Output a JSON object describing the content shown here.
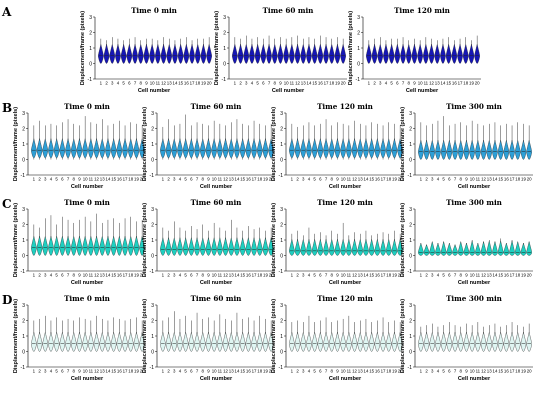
{
  "figure": {
    "rows": [
      {
        "label": "A",
        "titles": [
          "Time 0 min",
          "Time 60 min",
          "Time 120 min"
        ]
      },
      {
        "label": "B",
        "titles": [
          "Time 0 min",
          "Time 60 min",
          "Time 120 min",
          "Time 300 min"
        ]
      },
      {
        "label": "C",
        "titles": [
          "Time 0 min",
          "Time 60 min",
          "Time 120 min",
          "Time 300 min"
        ]
      },
      {
        "label": "D",
        "titles": [
          "Time 0 min",
          "Time 60 min",
          "Time 120 min",
          "Time 300 min"
        ]
      }
    ]
  },
  "chart_data": {
    "type": "violin",
    "xlabel": "Cell number",
    "ylabel": "Displacement/frame (pixels)",
    "categories": [
      "1",
      "2",
      "3",
      "4",
      "5",
      "6",
      "7",
      "8",
      "9",
      "10",
      "11",
      "12",
      "13",
      "14",
      "15",
      "16",
      "17",
      "18",
      "19",
      "20"
    ],
    "ylim": [
      -1,
      3
    ],
    "yticks": [
      "-1",
      "0",
      "1",
      "2",
      "3"
    ],
    "colors": {
      "A": "#1616b4",
      "B": "#2e9fd6",
      "C": "#1fcfc0",
      "D": "#dff5f2",
      "outline": "#222222"
    },
    "panels": [
      {
        "row": "A",
        "title": "Time 0 min",
        "median": [
          0.5,
          0.5,
          0.5,
          0.5,
          0.5,
          0.5,
          0.5,
          0.5,
          0.5,
          0.5,
          0.5,
          0.5,
          0.5,
          0.5,
          0.5,
          0.5,
          0.5,
          0.5,
          0.5,
          0.5
        ],
        "min": [
          0,
          0,
          0,
          0,
          0,
          0,
          0,
          0,
          0,
          0,
          0,
          0,
          0,
          0,
          0,
          0,
          0,
          0,
          0,
          0
        ],
        "max": [
          1.6,
          1.5,
          1.7,
          1.6,
          1.5,
          1.6,
          1.7,
          1.5,
          1.6,
          1.6,
          1.5,
          1.7,
          1.6,
          1.5,
          1.6,
          1.7,
          1.5,
          1.6,
          1.6,
          1.7
        ]
      },
      {
        "row": "A",
        "title": "Time 60 min",
        "median": [
          0.5,
          0.5,
          0.5,
          0.5,
          0.5,
          0.5,
          0.5,
          0.5,
          0.5,
          0.5,
          0.5,
          0.5,
          0.5,
          0.5,
          0.5,
          0.5,
          0.5,
          0.5,
          0.5,
          0.5
        ],
        "min": [
          0,
          0,
          0,
          0,
          0,
          0,
          0,
          0,
          0,
          0,
          0,
          0,
          0,
          0,
          0,
          0,
          0,
          0,
          0,
          0
        ],
        "max": [
          1.7,
          1.6,
          1.8,
          1.6,
          1.7,
          1.6,
          1.8,
          1.6,
          1.7,
          1.6,
          1.7,
          1.8,
          1.6,
          1.7,
          1.6,
          1.8,
          1.7,
          1.6,
          1.7,
          1.6
        ]
      },
      {
        "row": "A",
        "title": "Time 120 min",
        "median": [
          0.5,
          0.5,
          0.5,
          0.5,
          0.5,
          0.5,
          0.5,
          0.5,
          0.5,
          0.5,
          0.5,
          0.5,
          0.5,
          0.5,
          0.5,
          0.5,
          0.5,
          0.5,
          0.5,
          0.5
        ],
        "min": [
          0,
          0,
          0,
          0,
          0,
          0,
          0,
          0,
          0,
          0,
          0,
          0,
          0,
          0,
          0,
          0,
          0,
          0,
          0,
          0
        ],
        "max": [
          1.5,
          1.6,
          1.7,
          1.5,
          1.6,
          1.6,
          1.7,
          1.5,
          1.6,
          1.5,
          1.7,
          1.6,
          1.5,
          1.6,
          1.7,
          1.5,
          1.6,
          1.7,
          1.5,
          1.8
        ]
      },
      {
        "row": "B",
        "title": "Time 0 min",
        "median": [
          0.6,
          0.6,
          0.6,
          0.6,
          0.6,
          0.6,
          0.6,
          0.6,
          0.6,
          0.6,
          0.6,
          0.6,
          0.6,
          0.6,
          0.6,
          0.6,
          0.6,
          0.6,
          0.6,
          0.6
        ],
        "min": [
          0,
          0,
          0,
          0,
          0,
          0,
          0,
          0,
          0,
          0,
          0,
          0,
          0,
          0,
          0,
          0,
          0,
          0,
          0,
          0
        ],
        "max": [
          2.2,
          2.5,
          2.2,
          2.3,
          2.2,
          2.4,
          2.6,
          2.3,
          2.2,
          2.8,
          2.4,
          2.3,
          2.6,
          2.2,
          2.3,
          2.5,
          2.2,
          2.4,
          2.3,
          2.2
        ]
      },
      {
        "row": "B",
        "title": "Time 60 min",
        "median": [
          0.6,
          0.6,
          0.6,
          0.6,
          0.6,
          0.6,
          0.6,
          0.6,
          0.6,
          0.6,
          0.6,
          0.6,
          0.6,
          0.6,
          0.6,
          0.6,
          0.6,
          0.6,
          0.6,
          0.6
        ],
        "min": [
          0,
          0,
          0,
          0,
          0,
          0,
          0,
          0,
          0,
          0,
          0,
          0,
          0,
          0,
          0,
          0,
          0,
          0,
          0,
          0
        ],
        "max": [
          2.1,
          2.6,
          2.2,
          2.3,
          2.9,
          2.2,
          2.4,
          2.3,
          2.2,
          2.5,
          2.3,
          2.2,
          2.4,
          2.6,
          2.3,
          2.2,
          2.5,
          2.3,
          2.2,
          2.3
        ]
      },
      {
        "row": "B",
        "title": "Time 120 min",
        "median": [
          0.6,
          0.6,
          0.6,
          0.6,
          0.6,
          0.6,
          0.6,
          0.6,
          0.6,
          0.6,
          0.6,
          0.6,
          0.6,
          0.6,
          0.6,
          0.6,
          0.6,
          0.6,
          0.6,
          0.6
        ],
        "min": [
          0,
          0,
          0,
          0,
          0,
          0,
          0,
          0,
          0,
          0,
          0,
          0,
          0,
          0,
          0,
          0,
          0,
          0,
          0,
          0
        ],
        "max": [
          2.3,
          2.1,
          2.2,
          2.4,
          2.2,
          2.3,
          2.6,
          2.2,
          2.4,
          2.3,
          2.2,
          2.5,
          2.3,
          2.2,
          2.4,
          2.3,
          2.2,
          2.4,
          2.3,
          2.2
        ]
      },
      {
        "row": "B",
        "title": "Time 300 min",
        "median": [
          0.5,
          0.5,
          0.5,
          0.5,
          0.5,
          0.5,
          0.5,
          0.5,
          0.5,
          0.5,
          0.5,
          0.5,
          0.5,
          0.5,
          0.5,
          0.5,
          0.5,
          0.5,
          0.5,
          0.5
        ],
        "min": [
          0,
          0,
          0,
          0,
          0,
          0,
          0,
          0,
          0,
          0,
          0,
          0,
          0,
          0,
          0,
          0,
          0,
          0,
          0,
          0
        ],
        "max": [
          2.4,
          2.2,
          2.3,
          2.5,
          2.8,
          2.2,
          2.3,
          2.4,
          2.2,
          2.5,
          2.3,
          2.2,
          2.3,
          2.4,
          2.2,
          2.3,
          2.2,
          2.4,
          2.3,
          2.2
        ]
      },
      {
        "row": "C",
        "title": "Time 0 min",
        "median": [
          0.5,
          0.5,
          0.5,
          0.5,
          0.5,
          0.5,
          0.5,
          0.5,
          0.5,
          0.5,
          0.5,
          0.5,
          0.5,
          0.5,
          0.5,
          0.5,
          0.5,
          0.5,
          0.5,
          0.5
        ],
        "min": [
          0,
          0,
          0,
          0,
          0,
          0,
          0,
          0,
          0,
          0,
          0,
          0,
          0,
          0,
          0,
          0,
          0,
          0,
          0,
          0
        ],
        "max": [
          2.0,
          1.8,
          2.4,
          2.6,
          2.0,
          2.5,
          2.3,
          2.1,
          2.3,
          2.5,
          2.2,
          2.7,
          2.1,
          2.3,
          2.4,
          2.1,
          2.4,
          2.5,
          2.2,
          2.3
        ]
      },
      {
        "row": "C",
        "title": "Time 60 min",
        "median": [
          0.4,
          0.4,
          0.4,
          0.4,
          0.4,
          0.4,
          0.4,
          0.4,
          0.4,
          0.4,
          0.4,
          0.4,
          0.4,
          0.4,
          0.4,
          0.4,
          0.4,
          0.4,
          0.4,
          0.4
        ],
        "min": [
          0,
          0,
          0,
          0,
          0,
          0,
          0,
          0,
          0,
          0,
          0,
          0,
          0,
          0,
          0,
          0,
          0,
          0,
          0,
          0
        ],
        "max": [
          1.8,
          1.6,
          2.2,
          1.8,
          1.6,
          1.9,
          1.7,
          2.0,
          1.6,
          2.1,
          1.8,
          1.6,
          2.3,
          1.8,
          1.6,
          1.9,
          1.7,
          1.8,
          1.6,
          1.8
        ]
      },
      {
        "row": "C",
        "title": "Time 120 min",
        "median": [
          0.3,
          0.3,
          0.3,
          0.3,
          0.3,
          0.3,
          0.3,
          0.3,
          0.3,
          0.3,
          0.3,
          0.3,
          0.3,
          0.3,
          0.3,
          0.3,
          0.3,
          0.3,
          0.3,
          0.3
        ],
        "min": [
          0,
          0,
          0,
          0,
          0,
          0,
          0,
          0,
          0,
          0,
          0,
          0,
          0,
          0,
          0,
          0,
          0,
          0,
          0,
          0
        ],
        "max": [
          1.4,
          1.6,
          1.3,
          1.8,
          1.4,
          1.5,
          1.3,
          1.6,
          1.4,
          2.1,
          1.3,
          1.5,
          1.4,
          1.6,
          1.3,
          1.4,
          1.5,
          1.4,
          1.6,
          1.4
        ]
      },
      {
        "row": "C",
        "title": "Time 300 min",
        "median": [
          0.2,
          0.2,
          0.2,
          0.2,
          0.2,
          0.2,
          0.2,
          0.2,
          0.2,
          0.2,
          0.2,
          0.2,
          0.2,
          0.2,
          0.2,
          0.2,
          0.2,
          0.2,
          0.2,
          0.2
        ],
        "min": [
          0,
          0,
          0,
          0,
          0,
          0,
          0,
          0,
          0,
          0,
          0,
          0,
          0,
          0,
          0,
          0,
          0,
          0,
          0,
          0
        ],
        "max": [
          0.8,
          0.7,
          0.9,
          0.8,
          0.9,
          0.8,
          0.7,
          0.9,
          0.8,
          1.0,
          0.8,
          0.9,
          1.0,
          0.9,
          1.1,
          0.8,
          1.0,
          0.9,
          0.8,
          0.9
        ]
      },
      {
        "row": "D",
        "title": "Time 0 min",
        "median": [
          0.5,
          0.5,
          0.5,
          0.5,
          0.5,
          0.5,
          0.5,
          0.5,
          0.5,
          0.5,
          0.5,
          0.5,
          0.5,
          0.5,
          0.5,
          0.5,
          0.5,
          0.5,
          0.5,
          0.5
        ],
        "min": [
          0,
          0,
          0,
          0,
          0,
          0,
          0,
          0,
          0,
          0,
          0,
          0,
          0,
          0,
          0,
          0,
          0,
          0,
          0,
          0
        ],
        "max": [
          2.0,
          2.1,
          2.3,
          2.0,
          2.2,
          2.0,
          2.1,
          2.0,
          2.2,
          2.1,
          2.0,
          2.3,
          2.1,
          2.0,
          2.2,
          2.1,
          2.0,
          2.1,
          2.2,
          2.0
        ]
      },
      {
        "row": "D",
        "title": "Time 60 min",
        "median": [
          0.5,
          0.5,
          0.5,
          0.5,
          0.5,
          0.5,
          0.5,
          0.5,
          0.5,
          0.5,
          0.5,
          0.5,
          0.5,
          0.5,
          0.5,
          0.5,
          0.5,
          0.5,
          0.5,
          0.5
        ],
        "min": [
          0,
          0,
          0,
          0,
          0,
          0,
          0,
          0,
          0,
          0,
          0,
          0,
          0,
          0,
          0,
          0,
          0,
          0,
          0,
          0
        ],
        "max": [
          2.0,
          2.2,
          2.6,
          2.1,
          2.3,
          2.0,
          2.5,
          2.1,
          2.2,
          2.0,
          2.4,
          2.1,
          2.0,
          2.5,
          2.1,
          2.2,
          2.0,
          2.3,
          2.1,
          2.0
        ]
      },
      {
        "row": "D",
        "title": "Time 120 min",
        "median": [
          0.5,
          0.5,
          0.5,
          0.5,
          0.5,
          0.5,
          0.5,
          0.5,
          0.5,
          0.5,
          0.5,
          0.5,
          0.5,
          0.5,
          0.5,
          0.5,
          0.5,
          0.5,
          0.5,
          0.5
        ],
        "min": [
          0,
          0,
          0,
          0,
          0,
          0,
          0,
          0,
          0,
          0,
          0,
          0,
          0,
          0,
          0,
          0,
          0,
          0,
          0,
          0
        ],
        "max": [
          1.9,
          2.0,
          1.9,
          2.3,
          1.9,
          2.0,
          2.2,
          1.9,
          2.0,
          2.1,
          2.3,
          1.9,
          2.0,
          2.1,
          1.9,
          2.0,
          2.2,
          1.9,
          2.0,
          1.9
        ]
      },
      {
        "row": "D",
        "title": "Time 300 min",
        "median": [
          0.5,
          0.5,
          0.5,
          0.5,
          0.5,
          0.5,
          0.5,
          0.5,
          0.5,
          0.5,
          0.5,
          0.5,
          0.5,
          0.5,
          0.5,
          0.5,
          0.5,
          0.5,
          0.5,
          0.5
        ],
        "min": [
          0,
          0,
          0,
          0,
          0,
          0,
          0,
          0,
          0,
          0,
          0,
          0,
          0,
          0,
          0,
          0,
          0,
          0,
          0,
          0
        ],
        "max": [
          1.6,
          1.7,
          1.8,
          1.6,
          1.7,
          1.9,
          1.7,
          1.6,
          1.8,
          1.7,
          1.9,
          1.6,
          1.7,
          1.8,
          1.6,
          1.7,
          1.9,
          1.7,
          1.6,
          1.8
        ]
      }
    ]
  }
}
